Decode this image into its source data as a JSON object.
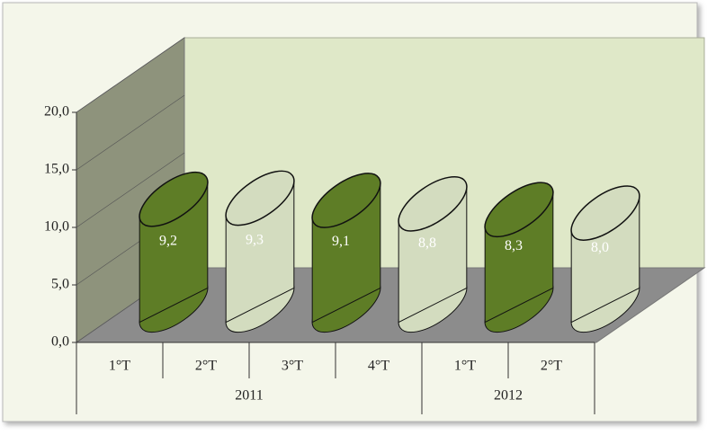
{
  "chart_data": {
    "type": "cylinder",
    "groups": [
      {
        "name": "2011",
        "categories": [
          "1°T",
          "2°T",
          "3°T",
          "4°T"
        ]
      },
      {
        "name": "2012",
        "categories": [
          "1°T",
          "2°T"
        ]
      }
    ],
    "values": [
      9.2,
      9.3,
      9.1,
      8.8,
      8.3,
      8.0
    ],
    "value_labels": [
      "9,2",
      "9,3",
      "9,1",
      "8,8",
      "8,3",
      "8,0"
    ],
    "colors": [
      "#5e7d26",
      "#d3dcbf",
      "#5e7d26",
      "#d3dcbf",
      "#5e7d26",
      "#d3dcbf"
    ],
    "ylim": [
      0,
      20
    ],
    "yticks": [
      {
        "value": 0,
        "label": "0,0"
      },
      {
        "value": 5,
        "label": "5,0"
      },
      {
        "value": 10,
        "label": "10,0"
      },
      {
        "value": 15,
        "label": "15,0"
      },
      {
        "value": 20,
        "label": "20,0"
      }
    ]
  }
}
